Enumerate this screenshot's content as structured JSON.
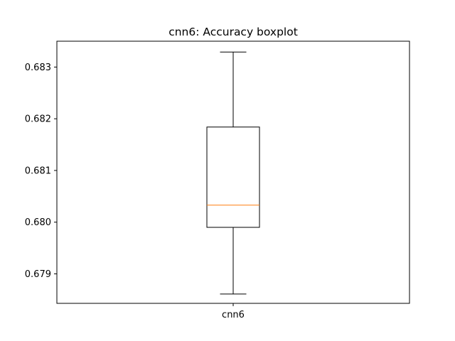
{
  "chart_data": {
    "type": "boxplot",
    "title": "cnn6: Accuracy boxplot",
    "xlabel": "",
    "ylabel": "",
    "categories": [
      "cnn6"
    ],
    "series": [
      {
        "name": "cnn6",
        "whisker_low": 0.67861,
        "q1": 0.6799,
        "median": 0.68033,
        "q3": 0.68184,
        "whisker_high": 0.68329
      }
    ],
    "ylim": [
      0.67843,
      0.6835
    ],
    "yticks": [
      0.679,
      0.68,
      0.681,
      0.682,
      0.683
    ],
    "ytick_labels": [
      "0.679",
      "0.680",
      "0.681",
      "0.682",
      "0.683"
    ],
    "grid": false,
    "colors": {
      "box": "#000000",
      "median": "#ff7f0e",
      "whisker": "#000000"
    }
  }
}
